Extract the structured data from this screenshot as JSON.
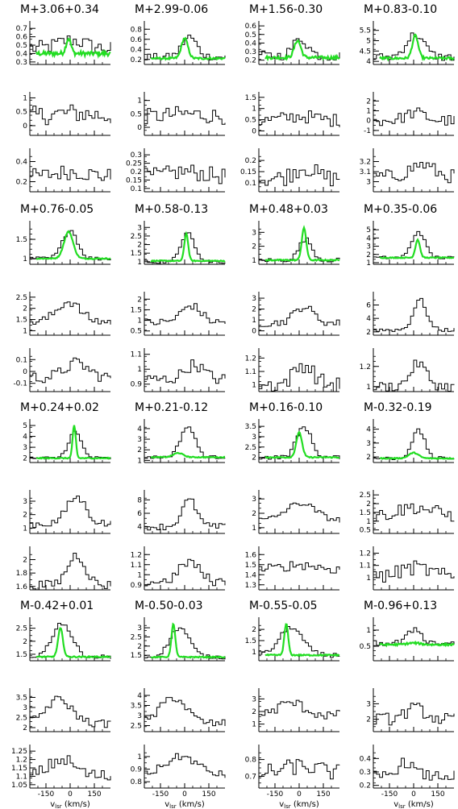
{
  "chart_data": {
    "type": "line",
    "description_axis": {
      "xlabel_main": "v",
      "xlabel_sub": "lsr",
      "xlabel_unit": " (km/s)",
      "xlim": [
        -250,
        250
      ],
      "xticks": [
        "-150",
        "0",
        "150"
      ]
    },
    "colors": {
      "observed": "#000000",
      "overlay": "#22dd22"
    },
    "panels": [
      {
        "title": "M+3.06+0.34",
        "rows": [
          {
            "ticks": [
              "0.7",
              "0.6",
              "0.5",
              "0.4",
              "0.3"
            ],
            "ylim": [
              0.27,
              0.75
            ],
            "base": 0.46,
            "amp": 0.1,
            "noise": 0.09,
            "center": 0,
            "width": 80,
            "green": {
              "base": 0.4,
              "amp": 0.18,
              "center": -10,
              "width": 15
            }
          },
          {
            "ticks": [
              "1",
              "0.5",
              "0"
            ],
            "ylim": [
              -0.35,
              1.1
            ],
            "base": 0.35,
            "amp": 0.1,
            "noise": 0.35,
            "center": 0,
            "width": 100
          },
          {
            "ticks": [
              "0.4",
              "0.2"
            ],
            "ylim": [
              0.1,
              0.5
            ],
            "base": 0.25,
            "amp": 0.05,
            "noise": 0.08,
            "center": 0,
            "width": 100
          }
        ]
      },
      {
        "title": "M+2.99-0.06",
        "rows": [
          {
            "ticks": [
              "0.8",
              "0.6",
              "0.4",
              "0.2"
            ],
            "ylim": [
              0.1,
              0.9
            ],
            "base": 0.25,
            "amp": 0.4,
            "noise": 0.07,
            "center": 20,
            "width": 45,
            "green": {
              "base": 0.22,
              "amp": 0.4,
              "center": 0,
              "width": 20
            }
          },
          {
            "ticks": [
              "1",
              "0.5",
              "0"
            ],
            "ylim": [
              -0.3,
              1.2
            ],
            "base": 0.4,
            "amp": 0.1,
            "noise": 0.3,
            "center": 0,
            "width": 100
          },
          {
            "ticks": [
              "0.3",
              "0.25",
              "0.2",
              "0.15",
              "0.1"
            ],
            "ylim": [
              0.08,
              0.32
            ],
            "base": 0.17,
            "amp": 0.03,
            "noise": 0.05,
            "center": 0,
            "width": 100
          }
        ]
      },
      {
        "title": "M+1.56-0.30",
        "rows": [
          {
            "ticks": [
              "0.6",
              "0.5",
              "0.4",
              "0.3",
              "0.2"
            ],
            "ylim": [
              0.15,
              0.62
            ],
            "base": 0.25,
            "amp": 0.2,
            "noise": 0.06,
            "center": 0,
            "width": 45,
            "green": {
              "base": 0.23,
              "amp": 0.2,
              "center": -10,
              "width": 20
            }
          },
          {
            "ticks": [
              "1.5",
              "1",
              "0.5",
              "0"
            ],
            "ylim": [
              -0.2,
              1.6
            ],
            "base": 0.45,
            "amp": 0.2,
            "noise": 0.3,
            "center": 0,
            "width": 100
          },
          {
            "ticks": [
              "0.2",
              "0.15",
              "0.1"
            ],
            "ylim": [
              0.06,
              0.24
            ],
            "base": 0.12,
            "amp": 0.05,
            "noise": 0.04,
            "center": 20,
            "width": 60
          }
        ]
      },
      {
        "title": "M+0.83-0.10",
        "rows": [
          {
            "ticks": [
              "5.5",
              "5",
              "4.5",
              "4"
            ],
            "ylim": [
              3.85,
              5.8
            ],
            "base": 4.2,
            "amp": 1.1,
            "noise": 0.2,
            "center": 0,
            "width": 55,
            "green": {
              "base": 4.15,
              "amp": 1.1,
              "center": 10,
              "width": 18
            }
          },
          {
            "ticks": [
              "2",
              "1",
              "0",
              "-1"
            ],
            "ylim": [
              -1.5,
              2.6
            ],
            "base": 0,
            "amp": 0.8,
            "noise": 0.6,
            "center": 0,
            "width": 60
          },
          {
            "ticks": [
              "3.2",
              "3.1",
              "3"
            ],
            "ylim": [
              2.9,
              3.3
            ],
            "base": 3.05,
            "amp": 0.12,
            "noise": 0.07,
            "center": 40,
            "width": 70
          }
        ]
      },
      {
        "title": "M+0.76-0.05",
        "rows": [
          {
            "ticks": [
              "1.5",
              "1"
            ],
            "ylim": [
              0.85,
              1.9
            ],
            "base": 1.0,
            "amp": 0.75,
            "noise": 0.05,
            "center": -10,
            "width": 45,
            "green": {
              "base": 1.0,
              "amp": 0.7,
              "center": -10,
              "width": 28
            }
          },
          {
            "ticks": [
              "2.5",
              "2",
              "1.5",
              "1"
            ],
            "ylim": [
              0.8,
              2.6
            ],
            "base": 1.4,
            "amp": 0.9,
            "noise": 0.2,
            "center": -20,
            "width": 70
          },
          {
            "ticks": [
              "0.1",
              "0",
              "-0.1"
            ],
            "ylim": [
              -0.17,
              0.17
            ],
            "base": -0.05,
            "amp": 0.12,
            "noise": 0.05,
            "center": 30,
            "width": 70
          }
        ]
      },
      {
        "title": "M+0.58-0.13",
        "rows": [
          {
            "ticks": [
              "3",
              "2.5",
              "2",
              "1.5",
              "1"
            ],
            "ylim": [
              0.85,
              3.2
            ],
            "base": 1.0,
            "amp": 1.8,
            "noise": 0.1,
            "center": 10,
            "width": 40,
            "green": {
              "base": 1.05,
              "amp": 1.6,
              "center": 10,
              "width": 12
            }
          },
          {
            "ticks": [
              "2",
              "1.5",
              "1",
              "0.5"
            ],
            "ylim": [
              0.3,
              2.2
            ],
            "base": 0.9,
            "amp": 0.8,
            "noise": 0.2,
            "center": 30,
            "width": 60
          },
          {
            "ticks": [
              "1.1",
              "1",
              "0.9"
            ],
            "ylim": [
              0.85,
              1.12
            ],
            "base": 0.93,
            "amp": 0.1,
            "noise": 0.04,
            "center": 50,
            "width": 60
          }
        ]
      },
      {
        "title": "M+0.48+0.03",
        "rows": [
          {
            "ticks": [
              "3",
              "2",
              "1"
            ],
            "ylim": [
              0.7,
              3.6
            ],
            "base": 1.0,
            "amp": 1.5,
            "noise": 0.15,
            "center": 30,
            "width": 40,
            "green": {
              "base": 1.0,
              "amp": 2.3,
              "center": 30,
              "width": 14
            }
          },
          {
            "ticks": [
              "3",
              "2",
              "1",
              "0"
            ],
            "ylim": [
              -0.4,
              3.3
            ],
            "base": 0.7,
            "amp": 1.5,
            "noise": 0.35,
            "center": 20,
            "width": 60
          },
          {
            "ticks": [
              "1.2",
              "1.1",
              "1"
            ],
            "ylim": [
              0.95,
              1.25
            ],
            "base": 1.0,
            "amp": 0.15,
            "noise": 0.06,
            "center": 20,
            "width": 60
          }
        ]
      },
      {
        "title": "M+0.35-0.06",
        "rows": [
          {
            "ticks": [
              "5",
              "4",
              "3",
              "2",
              "1"
            ],
            "ylim": [
              0.8,
              5.7
            ],
            "base": 1.6,
            "amp": 3.2,
            "noise": 0.2,
            "center": 20,
            "width": 40,
            "green": {
              "base": 1.6,
              "amp": 2.2,
              "center": 25,
              "width": 14
            }
          },
          {
            "ticks": [
              "6",
              "4",
              "2"
            ],
            "ylim": [
              1.5,
              7.5
            ],
            "base": 2.3,
            "amp": 4.5,
            "noise": 0.3,
            "center": 30,
            "width": 40
          },
          {
            "ticks": [
              "1.2",
              "1"
            ],
            "ylim": [
              0.95,
              1.35
            ],
            "base": 1.0,
            "amp": 0.23,
            "noise": 0.05,
            "center": 20,
            "width": 50
          }
        ]
      },
      {
        "title": "M+0.24+0.02",
        "rows": [
          {
            "ticks": [
              "5",
              "4",
              "3",
              "2"
            ],
            "ylim": [
              1.6,
              5.3
            ],
            "base": 2.0,
            "amp": 2.4,
            "noise": 0.15,
            "center": 20,
            "width": 40,
            "green": {
              "base": 2.0,
              "amp": 3.0,
              "center": 25,
              "width": 10
            }
          },
          {
            "ticks": [
              "3",
              "2",
              "1"
            ],
            "ylim": [
              0.6,
              3.6
            ],
            "base": 1.3,
            "amp": 2.0,
            "noise": 0.3,
            "center": 30,
            "width": 60
          },
          {
            "ticks": [
              "2",
              "1.8",
              "1.6"
            ],
            "ylim": [
              1.55,
              2.15
            ],
            "base": 1.62,
            "amp": 0.45,
            "noise": 0.07,
            "center": 30,
            "width": 55
          }
        ]
      },
      {
        "title": "M+0.21-0.12",
        "rows": [
          {
            "ticks": [
              "4",
              "3",
              "2",
              "1"
            ],
            "ylim": [
              0.8,
              4.6
            ],
            "base": 1.3,
            "amp": 2.9,
            "noise": 0.15,
            "center": 10,
            "width": 45,
            "green": {
              "base": 1.3,
              "amp": 0.4,
              "center": -40,
              "width": 30
            }
          },
          {
            "ticks": [
              "8",
              "6",
              "4"
            ],
            "ylim": [
              3.0,
              9.0
            ],
            "base": 4.0,
            "amp": 4.0,
            "noise": 0.5,
            "center": 20,
            "width": 45
          },
          {
            "ticks": [
              "1.2",
              "1.1",
              "1",
              "0.9"
            ],
            "ylim": [
              0.85,
              1.25
            ],
            "base": 0.93,
            "amp": 0.2,
            "noise": 0.05,
            "center": 20,
            "width": 60
          }
        ]
      },
      {
        "title": "M+0.16-0.10",
        "rows": [
          {
            "ticks": [
              "3.5",
              "3",
              "2.5",
              "2"
            ],
            "ylim": [
              1.75,
              3.7
            ],
            "base": 2.0,
            "amp": 1.5,
            "noise": 0.1,
            "center": 20,
            "width": 45,
            "green": {
              "base": 2.0,
              "amp": 1.2,
              "center": 0,
              "width": 18
            }
          },
          {
            "ticks": [
              "3",
              "2",
              "1"
            ],
            "ylim": [
              0.6,
              3.4
            ],
            "base": 1.5,
            "amp": 1.2,
            "noise": 0.2,
            "center": 0,
            "width": 90
          },
          {
            "ticks": [
              "1.6",
              "1.5",
              "1.4",
              "1.3"
            ],
            "ylim": [
              1.25,
              1.65
            ],
            "base": 1.45,
            "amp": 0.05,
            "noise": 0.05,
            "center": 0,
            "width": 100
          }
        ]
      },
      {
        "title": "M-0.32-0.19",
        "rows": [
          {
            "ticks": [
              "4",
              "3",
              "2"
            ],
            "ylim": [
              1.6,
              4.5
            ],
            "base": 1.9,
            "amp": 2.0,
            "noise": 0.12,
            "center": 20,
            "width": 40,
            "green": {
              "base": 1.9,
              "amp": 0.4,
              "center": 0,
              "width": 30
            }
          },
          {
            "ticks": [
              "2.5",
              "2",
              "1.5",
              "1",
              "0.5"
            ],
            "ylim": [
              0.3,
              2.6
            ],
            "base": 1.3,
            "amp": 0.5,
            "noise": 0.4,
            "center": 0,
            "width": 100
          },
          {
            "ticks": [
              "1.2",
              "1.1",
              "1"
            ],
            "ylim": [
              0.9,
              1.23
            ],
            "base": 1.0,
            "amp": 0.08,
            "noise": 0.06,
            "center": 0,
            "width": 100
          }
        ]
      },
      {
        "title": "M-0.42+0.01",
        "rows": [
          {
            "ticks": [
              "2.5",
              "2",
              "1.5"
            ],
            "ylim": [
              1.25,
              2.8
            ],
            "base": 1.4,
            "amp": 1.3,
            "noise": 0.08,
            "center": -60,
            "width": 60,
            "green": {
              "base": 1.4,
              "amp": 1.1,
              "center": -60,
              "width": 15
            }
          },
          {
            "ticks": [
              "3.5",
              "3",
              "2.5",
              "2"
            ],
            "ylim": [
              1.8,
              3.8
            ],
            "base": 2.2,
            "amp": 1.2,
            "noise": 0.2,
            "center": -80,
            "width": 80
          },
          {
            "ticks": [
              "1.25",
              "1.2",
              "1.15",
              "1.1",
              "1.05"
            ],
            "ylim": [
              1.03,
              1.27
            ],
            "base": 1.1,
            "amp": 0.1,
            "noise": 0.04,
            "center": -60,
            "width": 80
          }
        ]
      },
      {
        "title": "M-0.50-0.03",
        "rows": [
          {
            "ticks": [
              "3",
              "2.5",
              "2",
              "1.5"
            ],
            "ylim": [
              1.2,
              3.4
            ],
            "base": 1.4,
            "amp": 1.6,
            "noise": 0.1,
            "center": -40,
            "width": 60,
            "green": {
              "base": 1.4,
              "amp": 1.8,
              "center": -70,
              "width": 12
            }
          },
          {
            "ticks": [
              "4",
              "3.5",
              "3",
              "2.5"
            ],
            "ylim": [
              2.2,
              4.2
            ],
            "base": 2.6,
            "amp": 1.3,
            "noise": 0.2,
            "center": -80,
            "width": 80
          },
          {
            "ticks": [
              "1",
              "0.9",
              "0.8"
            ],
            "ylim": [
              0.75,
              1.07
            ],
            "base": 0.85,
            "amp": 0.15,
            "noise": 0.03,
            "center": -30,
            "width": 100
          }
        ]
      },
      {
        "title": "M-0.55-0.05",
        "rows": [
          {
            "ticks": [
              "2",
              "1.5",
              "1"
            ],
            "ylim": [
              0.6,
              2.4
            ],
            "base": 0.85,
            "amp": 1.25,
            "noise": 0.1,
            "center": -60,
            "width": 70,
            "green": {
              "base": 0.85,
              "amp": 1.4,
              "center": -80,
              "width": 12
            }
          },
          {
            "ticks": [
              "3",
              "2",
              "1"
            ],
            "ylim": [
              0.4,
              3.6
            ],
            "base": 1.7,
            "amp": 1.0,
            "noise": 0.4,
            "center": -60,
            "width": 80
          },
          {
            "ticks": [
              "0.8",
              "0.7"
            ],
            "ylim": [
              0.63,
              0.87
            ],
            "base": 0.72,
            "amp": 0.04,
            "noise": 0.05,
            "center": 0,
            "width": 100
          }
        ]
      },
      {
        "title": "M-0.96+0.13",
        "rows": [
          {
            "ticks": [
              "1",
              "0.5"
            ],
            "ylim": [
              0.05,
              1.3
            ],
            "base": 0.6,
            "amp": 0.45,
            "noise": 0.1,
            "center": 0,
            "width": 40,
            "green": {
              "base": 0.55,
              "amp": 0.05,
              "center": 0,
              "width": 40
            }
          },
          {
            "ticks": [
              "3",
              "2"
            ],
            "ylim": [
              1.2,
              3.8
            ],
            "base": 2.0,
            "amp": 0.7,
            "noise": 0.4,
            "center": 0,
            "width": 60
          },
          {
            "ticks": [
              "0.4",
              "0.3",
              "0.2"
            ],
            "ylim": [
              0.18,
              0.48
            ],
            "base": 0.27,
            "amp": 0.1,
            "noise": 0.04,
            "center": -60,
            "width": 50
          }
        ]
      }
    ]
  }
}
